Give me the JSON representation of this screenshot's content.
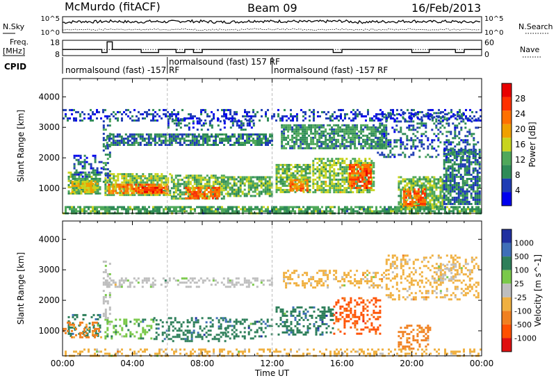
{
  "header": {
    "station": "McMurdo (fitACF)",
    "beam": "Beam 09",
    "date": "16/Feb/2013"
  },
  "side_labels": {
    "nsky": "N.Sky",
    "nsearch": "N.Search",
    "freq": "Freq.",
    "freq_unit": "[MHz]",
    "nave": "Nave",
    "cpid": "CPID"
  },
  "cpid_segments": [
    {
      "label": "normalsound (fast) -157 RF",
      "start_hour": 0
    },
    {
      "label": "normalsound (fast) 157 RF",
      "start_hour": 6
    },
    {
      "label": "normalsound (fast) -157 RF",
      "start_hour": 12
    }
  ],
  "colors": {
    "power": [
      "#0000ee",
      "#1e3cb4",
      "#2e8b57",
      "#4fa85a",
      "#c8d41e",
      "#f0a000",
      "#ff7000",
      "#ff3000",
      "#e80000"
    ],
    "velocity": [
      "#2030a0",
      "#3f6fb8",
      "#2e7f5a",
      "#7ac94a",
      "#bebebe",
      "#f0b040",
      "#f08020",
      "#ff5000",
      "#e01010"
    ],
    "ground_scatter": "#bebebe"
  },
  "chart_data": [
    {
      "type": "line",
      "name": "noise-panel",
      "left_axis_label": "N.Sky",
      "left_ticks": [
        "10^5",
        "10^0"
      ],
      "right_axis_label": "N.Search",
      "right_ticks": [
        "10^5",
        "10^0"
      ],
      "series": [
        {
          "name": "N.Sky",
          "style": "solid",
          "x_hours": [
            0,
            1,
            2,
            3,
            4,
            5,
            6,
            7,
            8,
            9,
            10,
            11,
            12,
            13,
            14,
            15,
            16,
            17,
            18,
            19,
            20,
            21,
            22,
            23,
            24
          ],
          "log10_values": [
            3.2,
            3.5,
            3.4,
            3.6,
            3.3,
            3.5,
            3.4,
            3.6,
            3.5,
            3.3,
            3.4,
            3.7,
            3.5,
            3.6,
            3.4,
            3.5,
            3.6,
            3.3,
            3.4,
            3.5,
            3.6,
            3.4,
            3.5,
            3.3,
            3.4
          ]
        },
        {
          "name": "N.Search",
          "style": "dotted",
          "x_hours": [
            0,
            1,
            2,
            3,
            4,
            5,
            6,
            7,
            8,
            9,
            10,
            11,
            12,
            13,
            14,
            15,
            16,
            17,
            18,
            19,
            20,
            21,
            22,
            23,
            24
          ],
          "log10_values": [
            0.8,
            1.0,
            0.9,
            1.1,
            0.9,
            1.0,
            1.0,
            1.1,
            0.9,
            1.0,
            0.9,
            1.2,
            1.0,
            1.1,
            0.9,
            1.0,
            1.1,
            0.9,
            1.0,
            1.0,
            1.1,
            0.9,
            1.0,
            0.9,
            1.0
          ]
        }
      ]
    },
    {
      "type": "line",
      "name": "frequency-panel",
      "left_axis_label": "Freq. [MHz]",
      "left_ticks": [
        "18",
        "8"
      ],
      "right_axis_label": "Nave",
      "right_ticks": [
        "60",
        "0"
      ],
      "series": [
        {
          "name": "Freq",
          "style": "solid",
          "steps": [
            [
              0,
              12
            ],
            [
              2,
              12
            ],
            [
              2.25,
              10
            ],
            [
              2.55,
              17
            ],
            [
              2.85,
              12
            ],
            [
              4.5,
              10
            ],
            [
              5.5,
              12
            ],
            [
              6.5,
              10
            ],
            [
              7,
              12
            ],
            [
              7.5,
              10
            ],
            [
              8,
              12
            ],
            [
              9,
              12
            ],
            [
              12,
              12
            ],
            [
              15.5,
              10
            ],
            [
              16,
              12
            ],
            [
              18,
              12
            ],
            [
              20,
              10
            ],
            [
              21,
              12
            ],
            [
              22.5,
              10
            ],
            [
              23,
              12
            ],
            [
              24,
              12
            ]
          ]
        },
        {
          "name": "Nave",
          "style": "dotted",
          "value": 24
        }
      ]
    },
    {
      "type": "heatmap",
      "name": "power-panel",
      "ylabel": "Slant Range [km]",
      "xlabel": "",
      "xlim": [
        0,
        24
      ],
      "ylim": [
        180,
        4600
      ],
      "x_ticks": [],
      "y_ticks": [
        1000,
        2000,
        3000,
        4000
      ],
      "colorbar": {
        "label": "Power [dB]",
        "ticks": [
          4,
          8,
          12,
          16,
          20,
          24,
          28
        ],
        "range": [
          0,
          32
        ]
      },
      "regions": [
        {
          "t0": 0.3,
          "t1": 2.2,
          "r0": 800,
          "r1": 1550,
          "v": 12
        },
        {
          "t0": 0.5,
          "t1": 2.0,
          "r0": 900,
          "r1": 1250,
          "v": 17
        },
        {
          "t0": 2.4,
          "t1": 6.2,
          "r0": 760,
          "r1": 1500,
          "v": 14
        },
        {
          "t0": 2.6,
          "t1": 6.0,
          "r0": 820,
          "r1": 1150,
          "v": 22
        },
        {
          "t0": 4.3,
          "t1": 5.8,
          "r0": 850,
          "r1": 1050,
          "v": 27
        },
        {
          "t0": 6.2,
          "t1": 9.3,
          "r0": 680,
          "r1": 1450,
          "v": 13
        },
        {
          "t0": 7.0,
          "t1": 9.0,
          "r0": 700,
          "r1": 1050,
          "v": 24
        },
        {
          "t0": 9.3,
          "t1": 12.0,
          "r0": 780,
          "r1": 1400,
          "v": 12
        },
        {
          "t0": 12.2,
          "t1": 14.2,
          "r0": 850,
          "r1": 1800,
          "v": 13
        },
        {
          "t0": 13.0,
          "t1": 14.0,
          "r0": 900,
          "r1": 1300,
          "v": 22
        },
        {
          "t0": 14.3,
          "t1": 17.8,
          "r0": 880,
          "r1": 2000,
          "v": 14
        },
        {
          "t0": 16.4,
          "t1": 17.6,
          "r0": 1000,
          "r1": 1800,
          "v": 25
        },
        {
          "t0": 19.2,
          "t1": 21.8,
          "r0": 350,
          "r1": 1400,
          "v": 13
        },
        {
          "t0": 19.5,
          "t1": 20.8,
          "r0": 400,
          "r1": 1000,
          "v": 24
        },
        {
          "t0": 21.8,
          "t1": 23.9,
          "r0": 500,
          "r1": 2300,
          "v": 8
        },
        {
          "t0": 2.3,
          "t1": 2.7,
          "r0": 1200,
          "r1": 3300,
          "v": 8
        },
        {
          "t0": 2.5,
          "t1": 8.0,
          "r0": 2400,
          "r1": 2800,
          "v": 8
        },
        {
          "t0": 8.0,
          "t1": 12.0,
          "r0": 2400,
          "r1": 2800,
          "v": 9
        },
        {
          "t0": 12.5,
          "t1": 18.5,
          "r0": 2300,
          "r1": 3100,
          "v": 10
        },
        {
          "t0": 18.0,
          "t1": 23.8,
          "r0": 2000,
          "r1": 3500,
          "v": 7
        },
        {
          "t0": 0.5,
          "t1": 2.2,
          "r0": 1400,
          "r1": 2100,
          "v": 6
        },
        {
          "t0": 6.0,
          "t1": 11.0,
          "r0": 2950,
          "r1": 3300,
          "v": 6
        },
        {
          "t0": 0.0,
          "t1": 24.0,
          "r0": 200,
          "r1": 420,
          "v": 11
        },
        {
          "t0": 0.0,
          "t1": 24.0,
          "r0": 3200,
          "r1": 3600,
          "v": 5
        }
      ]
    },
    {
      "type": "heatmap",
      "name": "velocity-panel",
      "ylabel": "Slant Range [km]",
      "xlabel": "Time UT",
      "xlim": [
        0,
        24
      ],
      "ylim": [
        180,
        4600
      ],
      "x_ticks": [
        "00:00",
        "04:00",
        "08:00",
        "12:00",
        "16:00",
        "20:00",
        "00:00"
      ],
      "y_ticks": [
        1000,
        2000,
        3000,
        4000
      ],
      "colorbar": {
        "label": "Velocity [m s^-1]",
        "ticks": [
          "1000",
          "500",
          "100",
          "25",
          "-25",
          "-100",
          "-500",
          "-1000"
        ]
      },
      "regions": [
        {
          "t0": 0.3,
          "t1": 2.2,
          "r0": 800,
          "r1": 1550,
          "v": 2
        },
        {
          "t0": 2.4,
          "t1": 5.2,
          "r0": 760,
          "r1": 1400,
          "v": 3
        },
        {
          "t0": 5.2,
          "t1": 9.3,
          "r0": 680,
          "r1": 1450,
          "v": 2
        },
        {
          "t0": 9.3,
          "t1": 12.0,
          "r0": 780,
          "r1": 1400,
          "v": 2
        },
        {
          "t0": 12.2,
          "t1": 15.5,
          "r0": 850,
          "r1": 1800,
          "v": 2
        },
        {
          "t0": 15.5,
          "t1": 18.2,
          "r0": 900,
          "r1": 2100,
          "v": 7
        },
        {
          "t0": 19.2,
          "t1": 21.0,
          "r0": 380,
          "r1": 1200,
          "v": 6
        },
        {
          "t0": 2.3,
          "t1": 2.7,
          "r0": 1200,
          "r1": 3300,
          "v": 4
        },
        {
          "t0": 2.5,
          "t1": 12.0,
          "r0": 2450,
          "r1": 2750,
          "v": 4
        },
        {
          "t0": 12.5,
          "t1": 18.5,
          "r0": 2400,
          "r1": 3000,
          "v": 5
        },
        {
          "t0": 18.5,
          "t1": 23.8,
          "r0": 2000,
          "r1": 3500,
          "v": 5
        },
        {
          "t0": 21.5,
          "t1": 22.5,
          "r0": 2700,
          "r1": 3200,
          "v": 4
        },
        {
          "t0": 0.0,
          "t1": 24.0,
          "r0": 200,
          "r1": 420,
          "v": 5
        },
        {
          "t0": 0.0,
          "t1": 2.2,
          "r0": 800,
          "r1": 1300,
          "v": 6
        }
      ]
    }
  ]
}
